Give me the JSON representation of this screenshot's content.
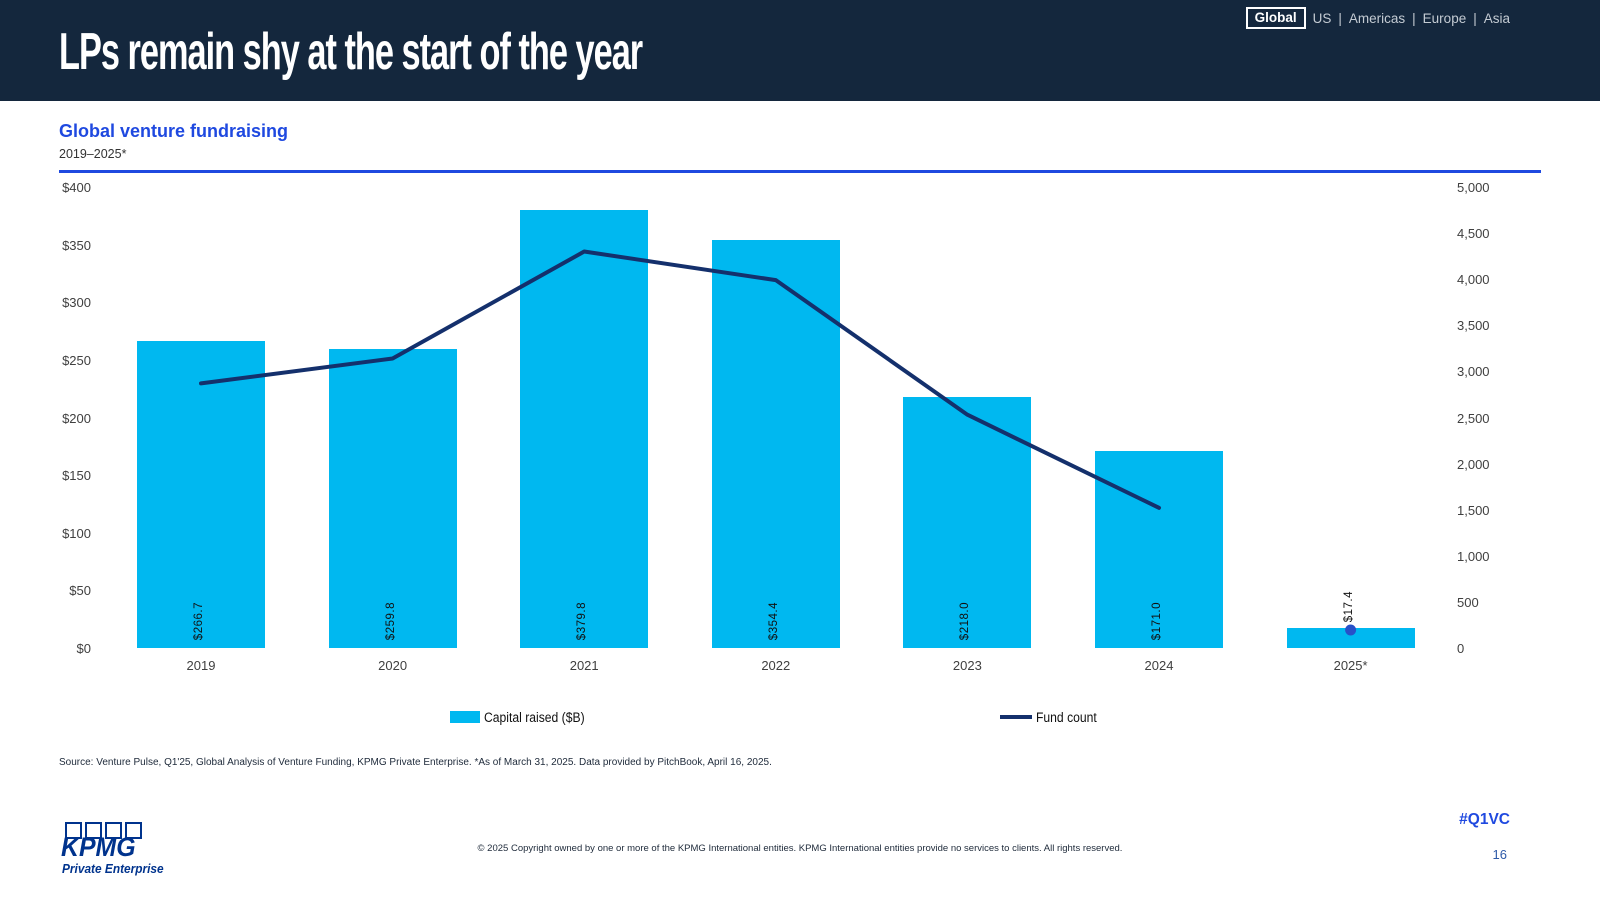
{
  "header": {
    "title": "LPs remain shy at the start of the year",
    "nav": {
      "items": [
        "Global",
        "US",
        "Americas",
        "Europe",
        "Asia"
      ],
      "active": "Global",
      "separator": "|"
    }
  },
  "chart_header": {
    "title": "Global venture fundraising",
    "subtitle": "2019–2025*"
  },
  "chart_data": {
    "type": "bar",
    "combo": "bar+line",
    "categories": [
      "2019",
      "2020",
      "2021",
      "2022",
      "2023",
      "2024",
      "2025*"
    ],
    "series": [
      {
        "name": "Capital raised ($B)",
        "type": "bar",
        "axis": "left",
        "color": "#00B8F0",
        "values": [
          266.7,
          259.8,
          379.8,
          354.4,
          218.0,
          171.0,
          17.4
        ],
        "labels": [
          "$266.7",
          "$259.8",
          "$379.8",
          "$354.4",
          "$218.0",
          "$171.0",
          "$17.4"
        ]
      },
      {
        "name": "Fund count",
        "type": "line",
        "axis": "right",
        "color": "#14306C",
        "dot_color": "#2850C8",
        "values": [
          2870,
          3140,
          4300,
          3990,
          2530,
          1520,
          195
        ],
        "note": "line drawn 2019-2024; 2025* shown as detached dot"
      }
    ],
    "left_axis": {
      "min": 0,
      "max": 400,
      "ticks": [
        "$400",
        "$350",
        "$300",
        "$250",
        "$200",
        "$150",
        "$100",
        "$50",
        "$0"
      ]
    },
    "right_axis": {
      "min": 0,
      "max": 5000,
      "ticks": [
        "5,000",
        "4,500",
        "4,000",
        "3,500",
        "3,000",
        "2,500",
        "2,000",
        "1,500",
        "1,000",
        "500",
        "0"
      ]
    },
    "legend": [
      {
        "label": "Capital raised ($B)",
        "swatch": "bar"
      },
      {
        "label": "Fund count",
        "swatch": "line"
      }
    ],
    "grid": "off",
    "legend_position": "bottom"
  },
  "source": "Source: Venture Pulse, Q1'25, Global Analysis of Venture Funding, KPMG Private Enterprise. *As of March 31, 2025. Data provided by PitchBook, April 16, 2025.",
  "footer": {
    "logo_brand": "KPMG",
    "logo_sub": "Private Enterprise",
    "copyright": "© 2025 Copyright owned by one or more of the KPMG International entities. KPMG International entities provide no services to clients. All rights reserved.",
    "hashtag": "#Q1VC",
    "page_number": "16"
  },
  "colors": {
    "header_bg": "#14273D",
    "accent_blue": "#1F49E0",
    "bar_cyan": "#00B8F0",
    "line_navy": "#14306C",
    "kpmg_navy": "#00338D"
  }
}
